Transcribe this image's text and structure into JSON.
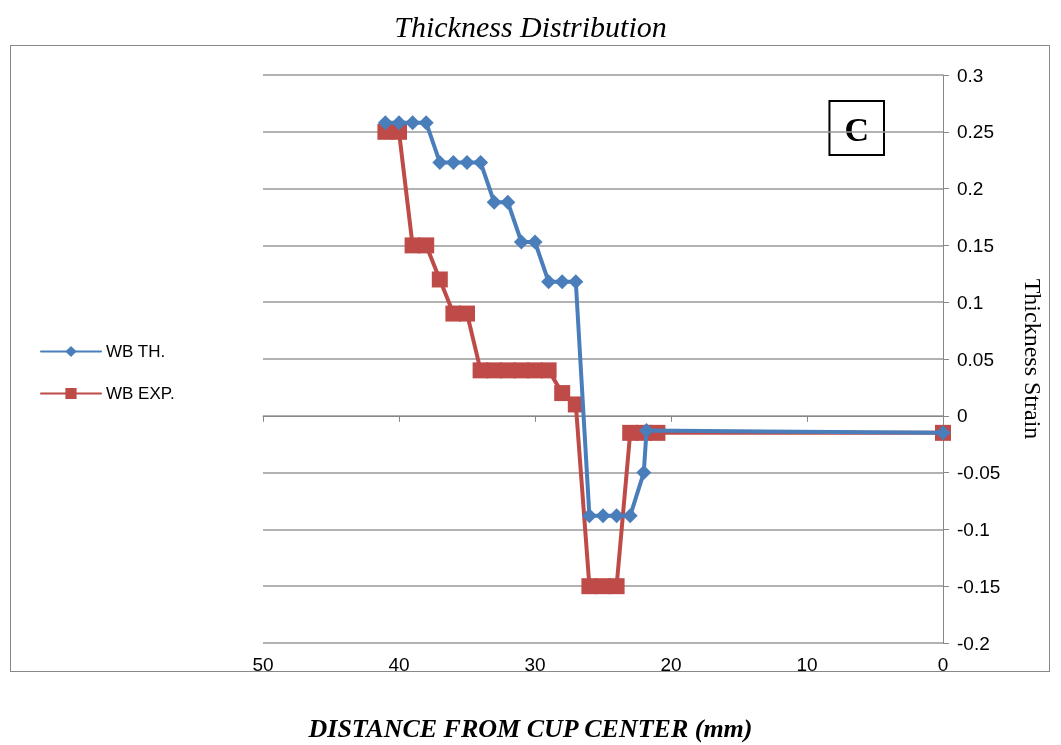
{
  "chart_data": {
    "type": "line",
    "title": "Thickness Distribution",
    "xlabel": "DISTANCE FROM CUP CENTER (mm)",
    "ylabel": "Thickness Strain",
    "annotations": [
      "C"
    ],
    "xlim": [
      50,
      0
    ],
    "xticks": [
      50,
      40,
      30,
      20,
      10,
      0
    ],
    "ylim": [
      -0.2,
      0.3
    ],
    "yticks": [
      -0.2,
      -0.15,
      -0.1,
      -0.05,
      0,
      0.05,
      0.1,
      0.15,
      0.2,
      0.25,
      0.3
    ],
    "grid": "y",
    "legend": "left",
    "line_style": "solid",
    "series": [
      {
        "name": "WB TH.",
        "color": "#4a7ebb",
        "marker": "diamond",
        "x": [
          41,
          40,
          39,
          38,
          37,
          36,
          35,
          34,
          33,
          32,
          31,
          30,
          29,
          28,
          27,
          26,
          25,
          24,
          23,
          22,
          21.8,
          0
        ],
        "values": [
          0.258,
          0.258,
          0.258,
          0.258,
          0.223,
          0.223,
          0.223,
          0.223,
          0.188,
          0.188,
          0.153,
          0.153,
          0.118,
          0.118,
          0.118,
          -0.088,
          -0.088,
          -0.088,
          -0.088,
          -0.05,
          -0.013,
          -0.015
        ]
      },
      {
        "name": "WB EXP.",
        "color": "#be4b48",
        "marker": "square",
        "x": [
          41,
          40,
          39,
          38,
          37,
          36,
          35,
          34,
          33,
          32,
          31,
          30,
          29,
          28,
          27,
          26,
          25,
          24,
          23,
          22,
          21,
          0
        ],
        "values": [
          0.25,
          0.25,
          0.15,
          0.15,
          0.12,
          0.09,
          0.09,
          0.04,
          0.04,
          0.04,
          0.04,
          0.04,
          0.04,
          0.02,
          0.01,
          -0.15,
          -0.15,
          -0.15,
          -0.015,
          -0.015,
          -0.015,
          -0.015
        ]
      }
    ]
  }
}
